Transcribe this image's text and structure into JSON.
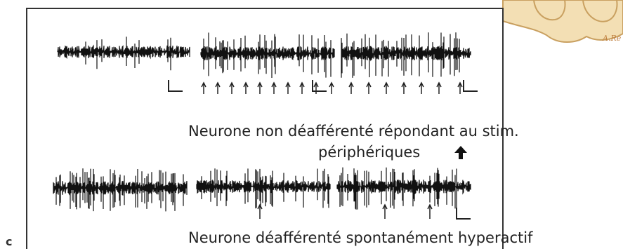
{
  "panel_label": "c",
  "watermark": "A.Re",
  "top_caption": "Neurone non déafférenté répondant au stim.",
  "top_caption_line2": "périphériques",
  "bottom_caption": "Neurone déafférenté spontanément hyperactif"
}
